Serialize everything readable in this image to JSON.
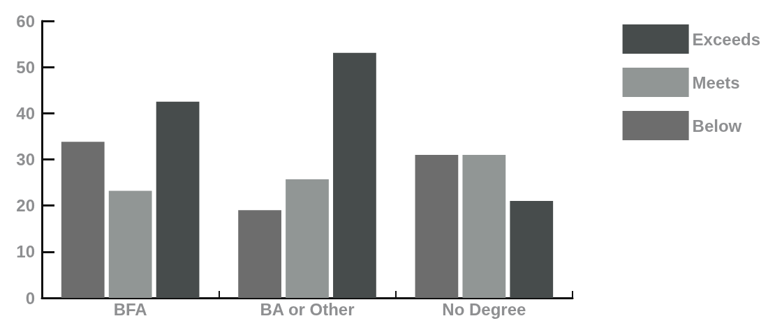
{
  "chart_data": {
    "type": "bar",
    "categories": [
      "BFA",
      "BA or Other",
      "No Degree"
    ],
    "series": [
      {
        "name": "Below",
        "color": "#6d6d6d",
        "values": [
          33.8,
          19.0,
          31
        ]
      },
      {
        "name": "Meets",
        "color": "#919695",
        "values": [
          23.2,
          25.7,
          31
        ]
      },
      {
        "name": "Exceeds",
        "color": "#474c4c",
        "values": [
          42.5,
          53.1,
          21
        ]
      }
    ],
    "ylim": [
      0,
      60
    ],
    "yticks": [
      0,
      10,
      20,
      30,
      40,
      50,
      60
    ],
    "grid": false,
    "legend": "top right"
  }
}
